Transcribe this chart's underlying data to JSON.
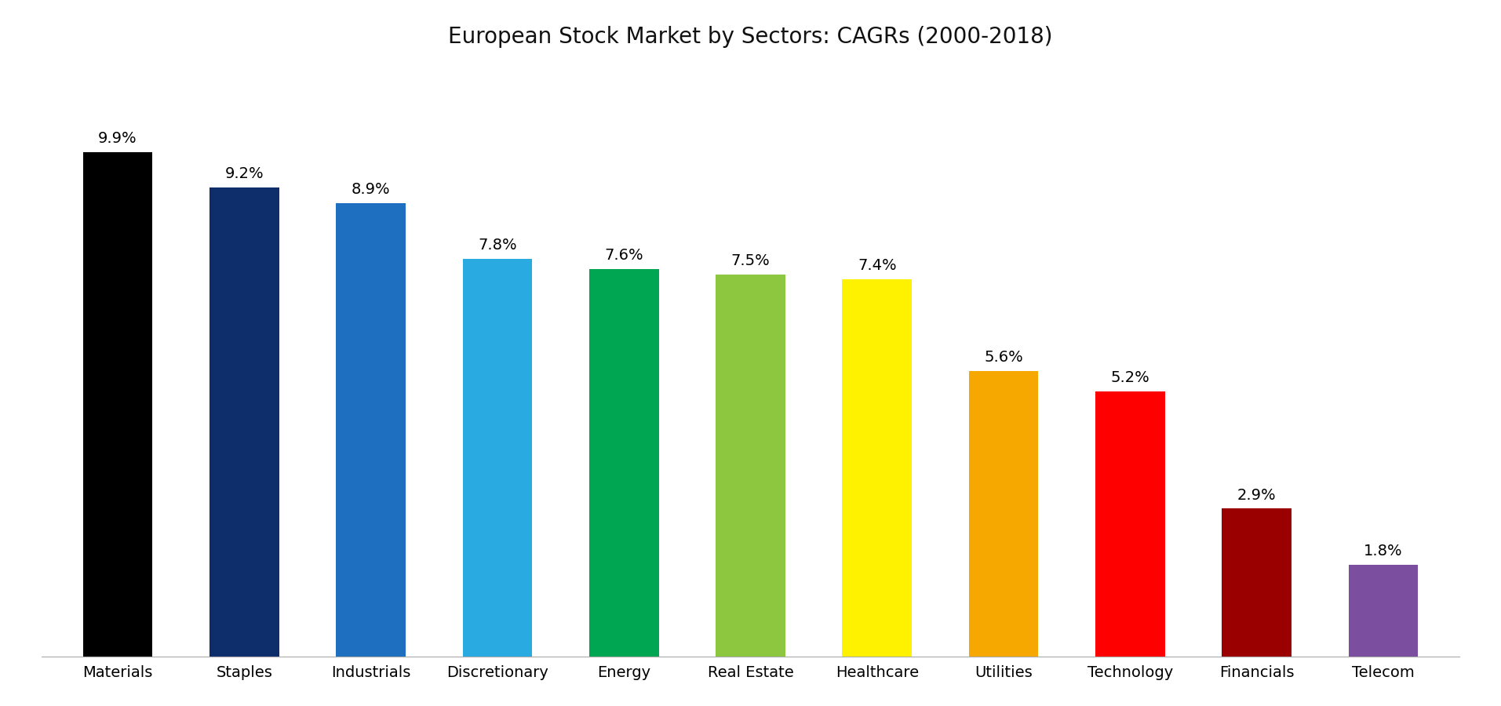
{
  "title": "European Stock Market by Sectors: CAGRs (2000-2018)",
  "categories": [
    "Materials",
    "Staples",
    "Industrials",
    "Discretionary",
    "Energy",
    "Real Estate",
    "Healthcare",
    "Utilities",
    "Technology",
    "Financials",
    "Telecom"
  ],
  "values": [
    9.9,
    9.2,
    8.9,
    7.8,
    7.6,
    7.5,
    7.4,
    5.6,
    5.2,
    2.9,
    1.8
  ],
  "bar_colors": [
    "#000000",
    "#0D2D6B",
    "#1E6FBF",
    "#29ABE2",
    "#00A651",
    "#8DC63F",
    "#FFF200",
    "#F7A800",
    "#FF0000",
    "#9B0000",
    "#7B4EA0"
  ],
  "ylim": [
    0,
    11.5
  ],
  "title_fontsize": 20,
  "label_fontsize": 14,
  "tick_fontsize": 14,
  "background_color": "#ffffff",
  "bar_width": 0.55
}
